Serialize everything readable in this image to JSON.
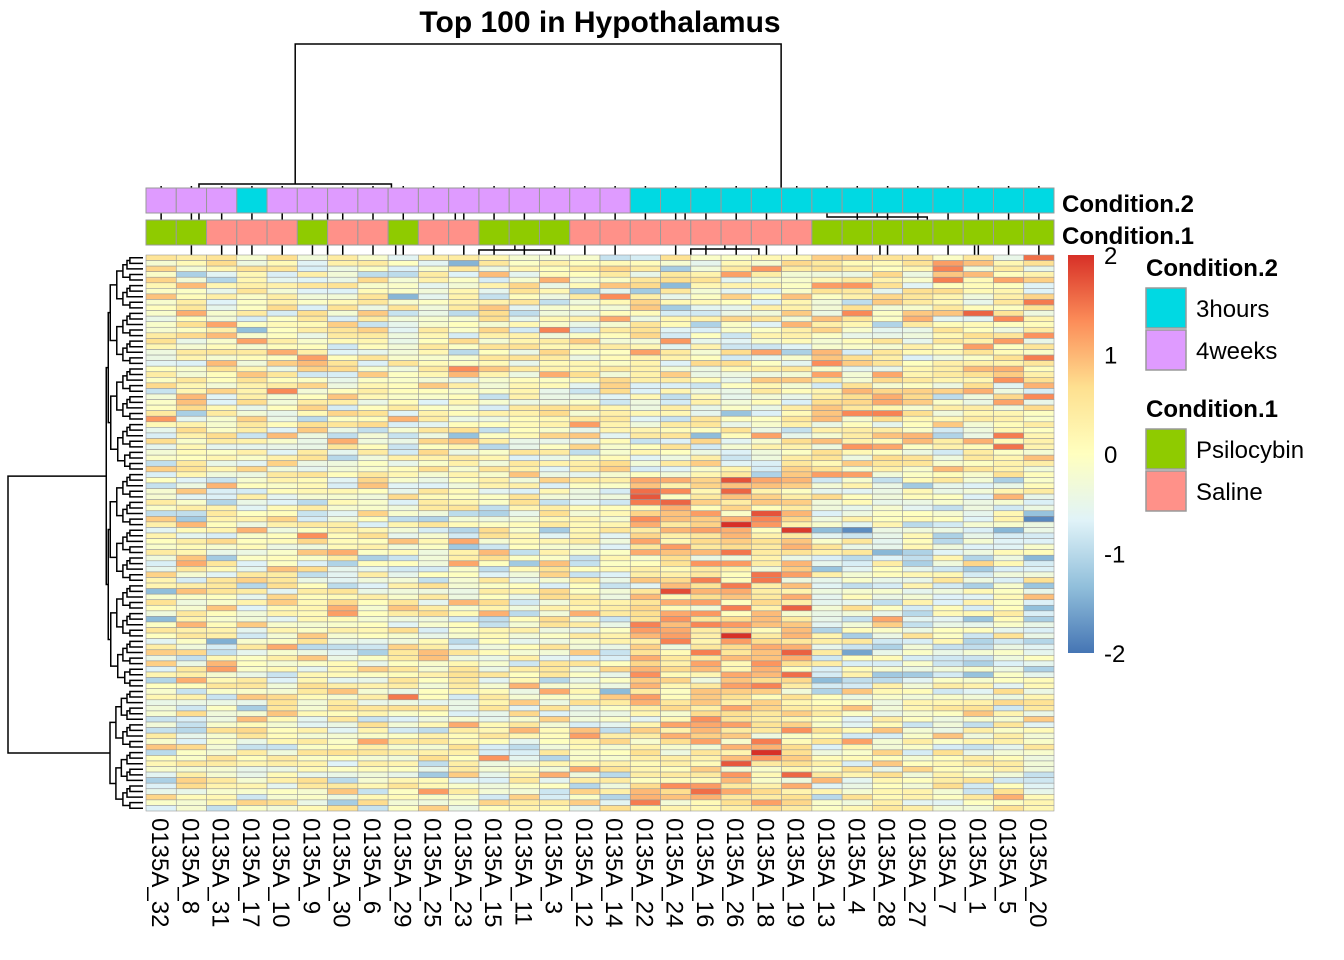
{
  "chart_data": {
    "type": "heatmap",
    "title": "Top 100 in Hypothalamus",
    "n_rows": 100,
    "columns": [
      "0135A_32",
      "0135A_8",
      "0135A_31",
      "0135A_17",
      "0135A_10",
      "0135A_9",
      "0135A_30",
      "0135A_6",
      "0135A_29",
      "0135A_25",
      "0135A_23",
      "0135A_15",
      "0135A_11",
      "0135A_3",
      "0135A_12",
      "0135A_14",
      "0135A_22",
      "0135A_24",
      "0135A_16",
      "0135A_26",
      "0135A_18",
      "0135A_19",
      "0135A_13",
      "0135A_4",
      "0135A_28",
      "0135A_27",
      "0135A_7",
      "0135A_1",
      "0135A_5",
      "0135A_20"
    ],
    "annotations": {
      "Condition.2": [
        "4weeks",
        "4weeks",
        "4weeks",
        "3hours",
        "4weeks",
        "4weeks",
        "4weeks",
        "4weeks",
        "4weeks",
        "4weeks",
        "4weeks",
        "4weeks",
        "4weeks",
        "4weeks",
        "4weeks",
        "4weeks",
        "3hours",
        "3hours",
        "3hours",
        "3hours",
        "3hours",
        "3hours",
        "3hours",
        "3hours",
        "3hours",
        "3hours",
        "3hours",
        "3hours",
        "3hours",
        "3hours"
      ],
      "Condition.1": [
        "Psilocybin",
        "Psilocybin",
        "Saline",
        "Saline",
        "Saline",
        "Psilocybin",
        "Saline",
        "Saline",
        "Psilocybin",
        "Saline",
        "Saline",
        "Psilocybin",
        "Psilocybin",
        "Psilocybin",
        "Saline",
        "Saline",
        "Saline",
        "Saline",
        "Saline",
        "Saline",
        "Saline",
        "Saline",
        "Psilocybin",
        "Psilocybin",
        "Psilocybin",
        "Psilocybin",
        "Psilocybin",
        "Psilocybin",
        "Psilocybin",
        "Psilocybin"
      ]
    },
    "annotation_labels": [
      "Condition.2",
      "Condition.1"
    ],
    "color_scale": {
      "min": -2,
      "max": 2,
      "ticks": [
        2,
        1,
        0,
        -1,
        -2
      ],
      "tick_labels": [
        "2",
        "1",
        "0",
        "-1",
        "-2"
      ],
      "colors": [
        "#4575B4",
        "#91BFDB",
        "#E0F3F8",
        "#FFFFBF",
        "#FEE090",
        "#FC8D59",
        "#D73027"
      ]
    },
    "legend": [
      {
        "title": "Condition.2",
        "items": [
          {
            "label": "3hours",
            "color": "#00D9E3"
          },
          {
            "label": "4weeks",
            "color": "#DF9BFF"
          }
        ]
      },
      {
        "title": "Condition.1",
        "items": [
          {
            "label": "Psilocybin",
            "color": "#8FCB00"
          },
          {
            "label": "Saline",
            "color": "#FF9189"
          }
        ]
      }
    ],
    "values_note": ""
  }
}
